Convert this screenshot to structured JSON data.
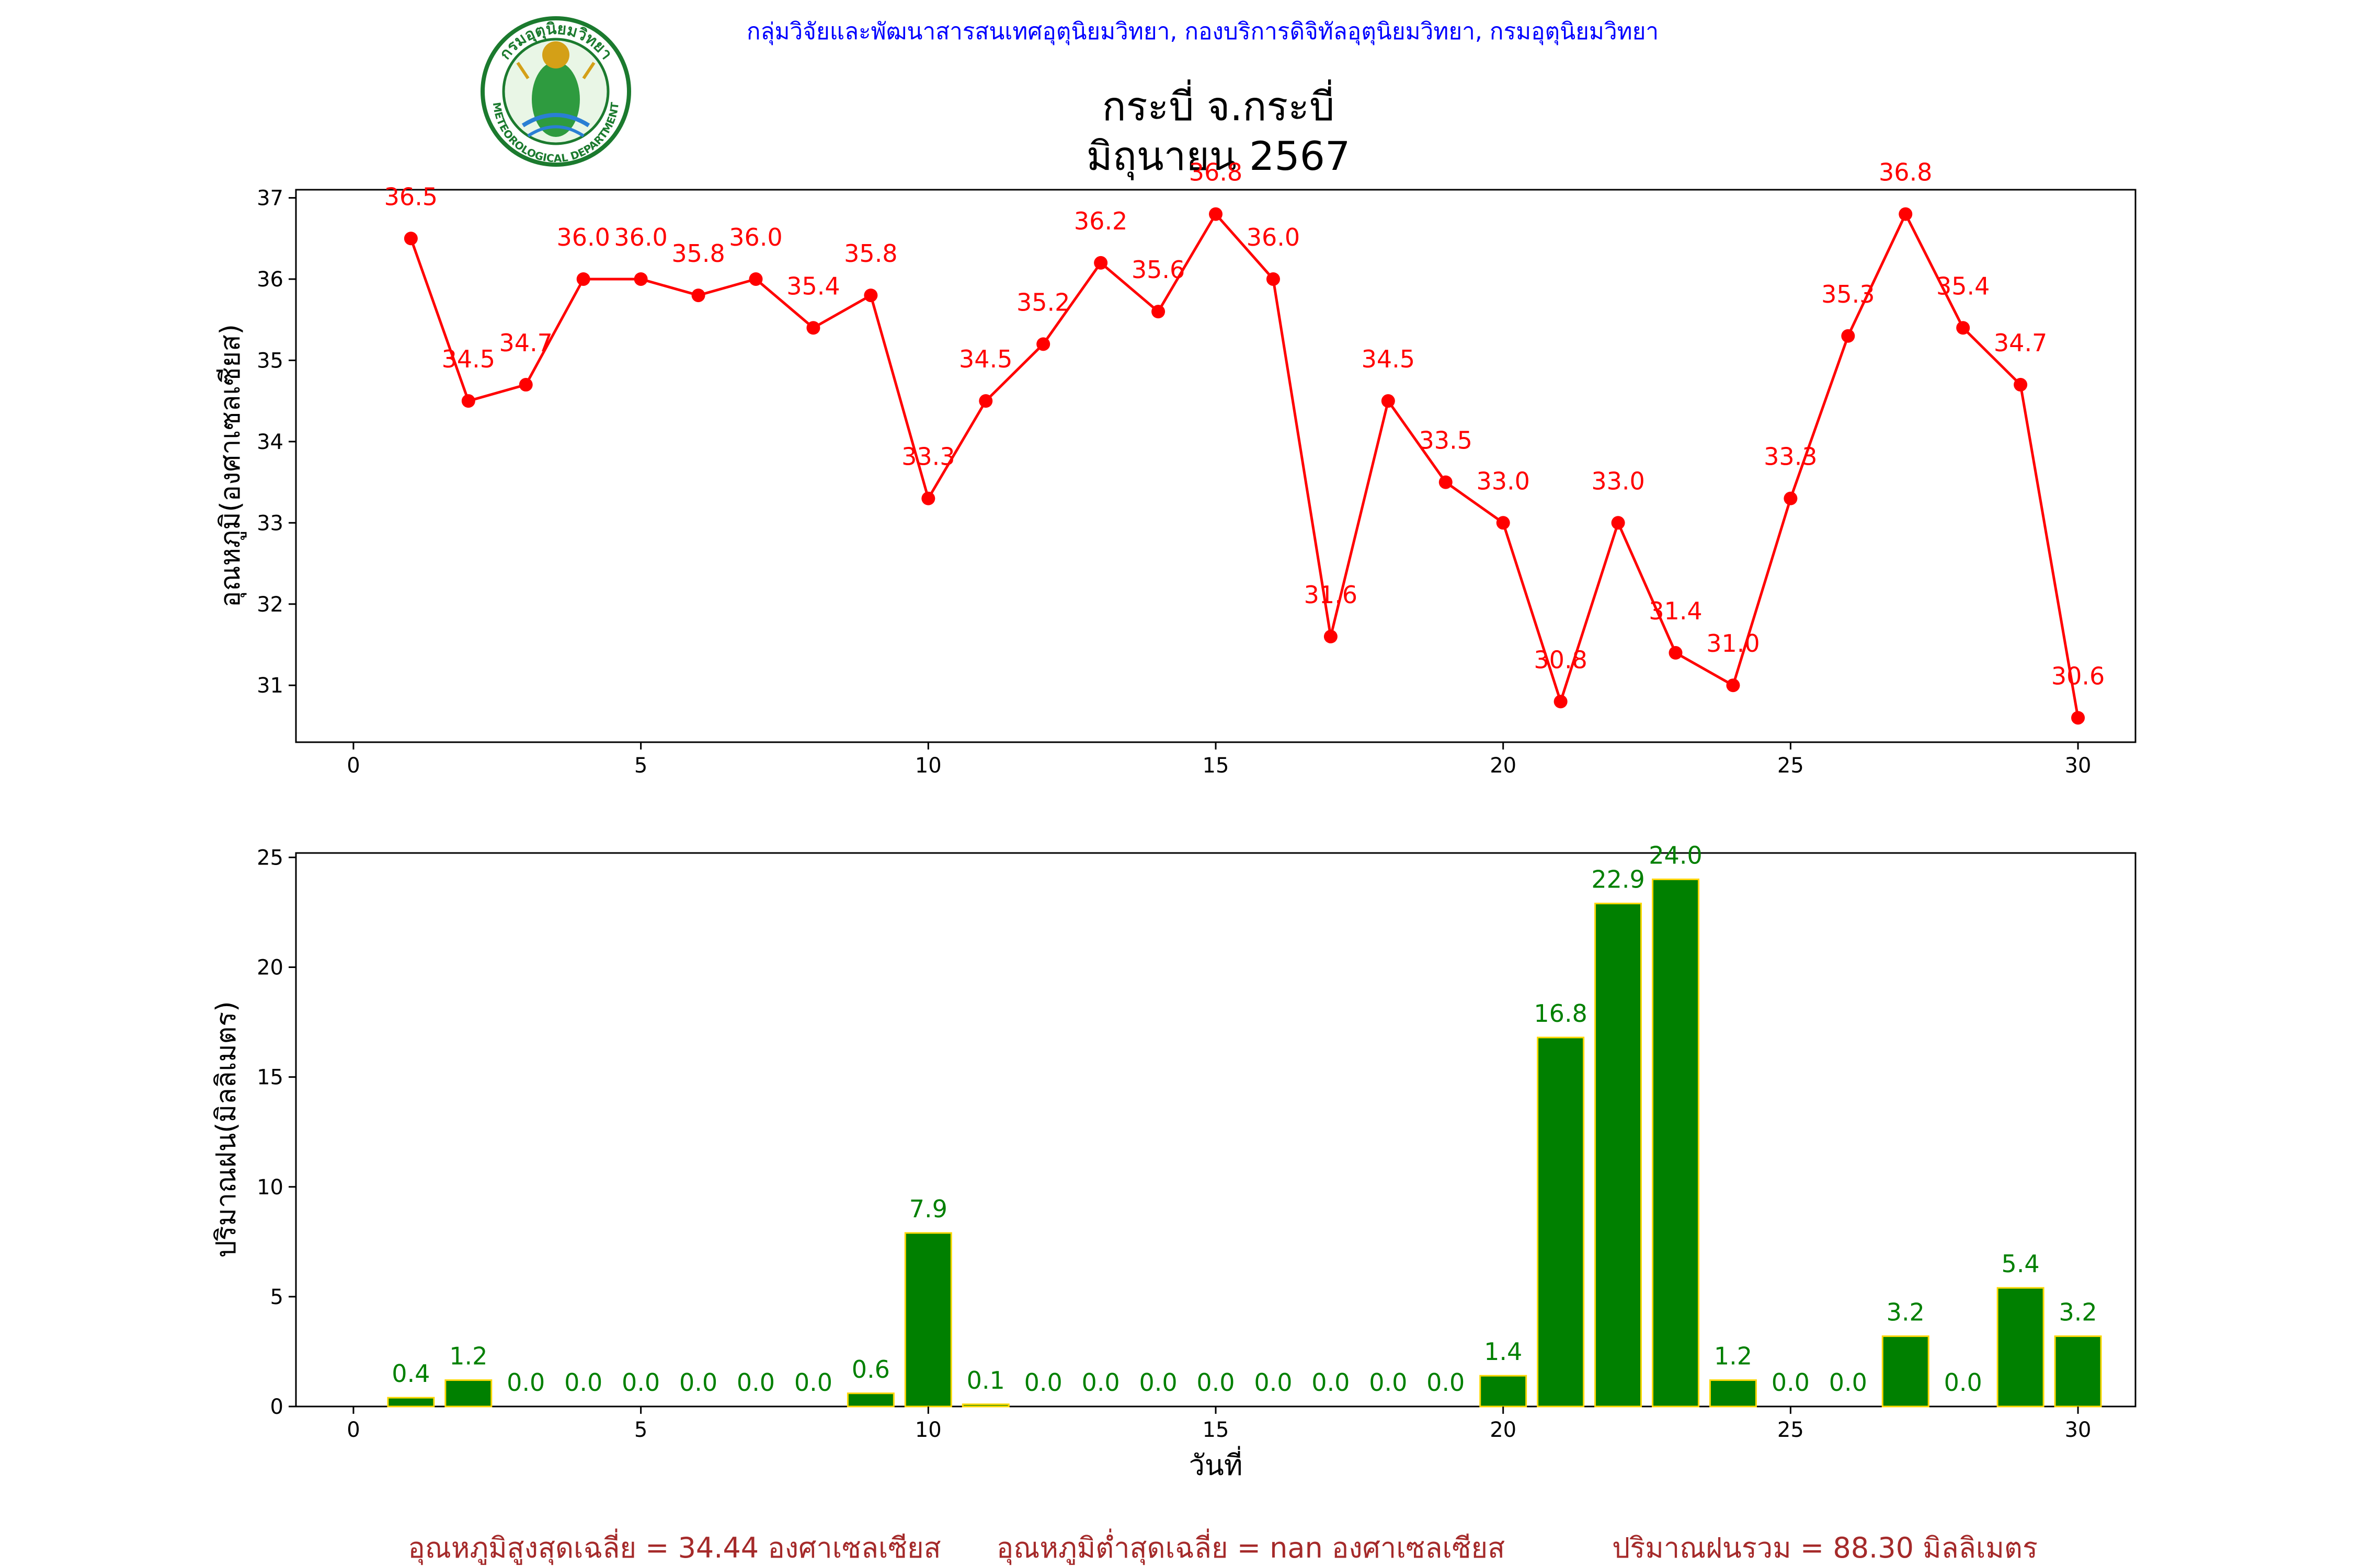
{
  "header": {
    "org_line": "กลุ่มวิจัยและพัฒนาสารสนเทศอุตุนิยมวิทยา, กองบริการดิจิทัลอุตุนิยมวิทยา, กรมอุตุนิยมวิทยา",
    "title_line1": "กระบี่ จ.กระบี่",
    "title_line2": "มิถุนายน 2567",
    "logo_top_text": "กรมอุตุนิยมวิทยา",
    "logo_bottom_text": "METEOROLOGICAL DEPARTMENT"
  },
  "colors": {
    "temp_line": "#ff0000",
    "rain_bar": "#008000",
    "rain_bar_edge": "#ffd700",
    "org_text": "#0000ff",
    "footer_text": "#a52a2a"
  },
  "chart_data": [
    {
      "type": "line",
      "ylabel": "อุณหภูมิ(องศาเซลเซียส)",
      "xlabel": "",
      "xlim": [
        -1,
        31
      ],
      "ylim": [
        30.3,
        37.1
      ],
      "xticks": [
        0,
        5,
        10,
        15,
        20,
        25,
        30
      ],
      "yticks": [
        31,
        32,
        33,
        34,
        35,
        36,
        37
      ],
      "grid": false,
      "x": [
        1,
        2,
        3,
        4,
        5,
        6,
        7,
        8,
        9,
        10,
        11,
        12,
        13,
        14,
        15,
        16,
        17,
        18,
        19,
        20,
        21,
        22,
        23,
        24,
        25,
        26,
        27,
        28,
        29,
        30
      ],
      "values": [
        36.5,
        34.5,
        34.7,
        36.0,
        36.0,
        35.8,
        36.0,
        35.4,
        35.8,
        33.3,
        34.5,
        35.2,
        36.2,
        35.6,
        36.8,
        36.0,
        31.6,
        34.5,
        33.5,
        33.0,
        30.8,
        33.0,
        31.4,
        31.0,
        33.3,
        35.3,
        36.8,
        35.4,
        34.7,
        30.6
      ]
    },
    {
      "type": "bar",
      "ylabel": "ปริมาณฝน(มิลลิเมตร)",
      "xlabel": "วันที่",
      "xlim": [
        -1,
        31
      ],
      "ylim": [
        0,
        25.2
      ],
      "xticks": [
        0,
        5,
        10,
        15,
        20,
        25,
        30
      ],
      "yticks": [
        0,
        5,
        10,
        15,
        20,
        25
      ],
      "grid": false,
      "x": [
        1,
        2,
        3,
        4,
        5,
        6,
        7,
        8,
        9,
        10,
        11,
        12,
        13,
        14,
        15,
        16,
        17,
        18,
        19,
        20,
        21,
        22,
        23,
        24,
        25,
        26,
        27,
        28,
        29,
        30
      ],
      "values": [
        0.4,
        1.2,
        0.0,
        0.0,
        0.0,
        0.0,
        0.0,
        0.0,
        0.6,
        7.9,
        0.1,
        0.0,
        0.0,
        0.0,
        0.0,
        0.0,
        0.0,
        0.0,
        0.0,
        1.4,
        16.8,
        22.9,
        24.0,
        1.2,
        0.0,
        0.0,
        3.2,
        0.0,
        5.4,
        3.2
      ]
    }
  ],
  "footer": {
    "avg_max_temp": "อุณหภูมิสูงสุดเฉลี่ย = 34.44 องศาเซลเซียส",
    "avg_min_temp": "อุณหภูมิต่ำสุดเฉลี่ย = nan องศาเซลเซียส",
    "total_rain": "ปริมาณฝนรวม = 88.30 มิลลิเมตร"
  }
}
